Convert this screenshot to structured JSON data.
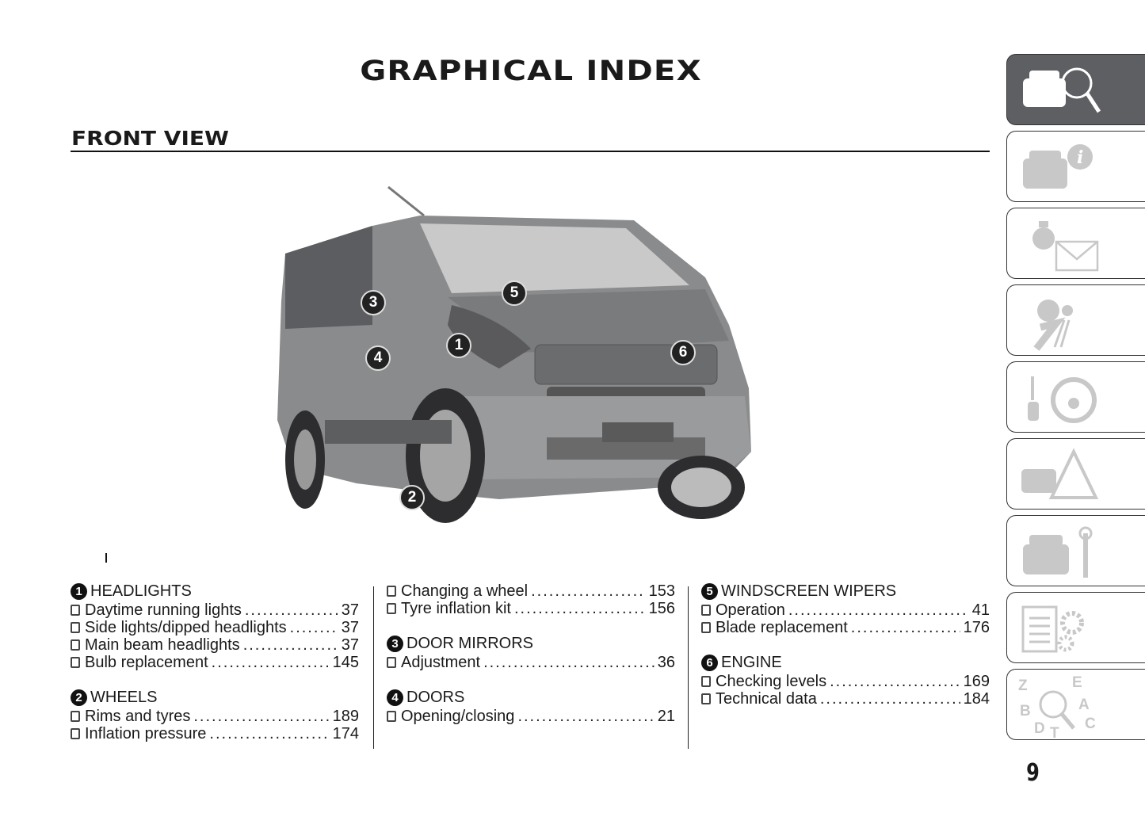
{
  "title": "GRAPHICAL INDEX",
  "section": "FRONT VIEW",
  "callouts": [
    "1",
    "2",
    "3",
    "4",
    "5",
    "6"
  ],
  "columns": [
    {
      "groups": [
        {
          "num": "1",
          "label": "HEADLIGHTS",
          "items": [
            {
              "text": "Daytime running lights",
              "page": "37"
            },
            {
              "text": "Side lights/dipped headlights",
              "page": "37"
            },
            {
              "text": "Main beam headlights",
              "page": "37"
            },
            {
              "text": "Bulb replacement",
              "page": "145"
            }
          ]
        },
        {
          "num": "2",
          "label": "WHEELS",
          "items": [
            {
              "text": "Rims and tyres",
              "page": "189"
            },
            {
              "text": "Inflation pressure",
              "page": "174"
            }
          ]
        }
      ]
    },
    {
      "groups": [
        {
          "items": [
            {
              "text": "Changing a wheel",
              "page": "153"
            },
            {
              "text": "Tyre inflation kit",
              "page": "156"
            }
          ]
        },
        {
          "num": "3",
          "label": "DOOR MIRRORS",
          "items": [
            {
              "text": "Adjustment",
              "page": "36"
            }
          ]
        },
        {
          "num": "4",
          "label": "DOORS",
          "items": [
            {
              "text": "Opening/closing",
              "page": "21"
            }
          ]
        }
      ]
    },
    {
      "groups": [
        {
          "num": "5",
          "label": "WINDSCREEN WIPERS",
          "items": [
            {
              "text": "Operation",
              "page": "41"
            },
            {
              "text": "Blade replacement",
              "page": "176"
            }
          ]
        },
        {
          "num": "6",
          "label": "ENGINE",
          "items": [
            {
              "text": "Checking levels",
              "page": "169"
            },
            {
              "text": "Technical data",
              "page": "184"
            }
          ]
        }
      ]
    }
  ],
  "tabs": [
    {
      "icon": "car-magnifier-icon",
      "active": true
    },
    {
      "icon": "car-info-icon"
    },
    {
      "icon": "warning-light-message-icon"
    },
    {
      "icon": "airbag-seat-icon"
    },
    {
      "icon": "key-steering-wheel-icon"
    },
    {
      "icon": "car-warning-triangle-icon"
    },
    {
      "icon": "car-wrench-icon"
    },
    {
      "icon": "data-sheet-gears-icon"
    },
    {
      "icon": "alphabetical-index-icon"
    }
  ],
  "tab_letters": "ZEBADCT",
  "page_number": "9",
  "colors": {
    "active_tab": "#5e5f62",
    "inactive_icon": "#c8c8c8",
    "text": "#1a1a1a"
  }
}
